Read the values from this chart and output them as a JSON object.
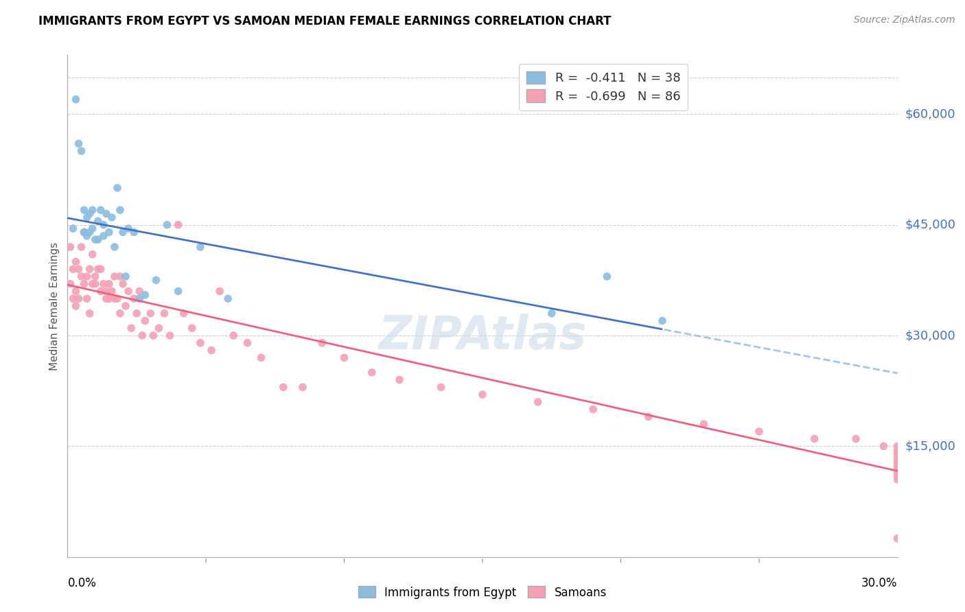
{
  "title": "IMMIGRANTS FROM EGYPT VS SAMOAN MEDIAN FEMALE EARNINGS CORRELATION CHART",
  "source": "Source: ZipAtlas.com",
  "ylabel": "Median Female Earnings",
  "right_yticks": [
    "$60,000",
    "$45,000",
    "$30,000",
    "$15,000"
  ],
  "right_ytick_vals": [
    60000,
    45000,
    30000,
    15000
  ],
  "legend_egypt": "R =  -0.411   N = 38",
  "legend_samoan": "R =  -0.699   N = 86",
  "legend_label1": "Immigrants from Egypt",
  "legend_label2": "Samoans",
  "egypt_color": "#8bbde0",
  "samoan_color": "#f4a0b5",
  "egypt_line_color": "#4472c4",
  "samoan_line_color": "#f06080",
  "egypt_line_dash_color": "#a0c8e8",
  "xmin": 0.0,
  "xmax": 0.3,
  "ymin": 0,
  "ymax": 68000,
  "egypt_scatter_x": [
    0.002,
    0.003,
    0.004,
    0.005,
    0.006,
    0.006,
    0.007,
    0.007,
    0.008,
    0.008,
    0.009,
    0.009,
    0.01,
    0.011,
    0.011,
    0.012,
    0.013,
    0.013,
    0.014,
    0.015,
    0.016,
    0.017,
    0.018,
    0.019,
    0.02,
    0.021,
    0.022,
    0.024,
    0.026,
    0.028,
    0.032,
    0.036,
    0.04,
    0.048,
    0.058,
    0.175,
    0.195,
    0.215
  ],
  "egypt_scatter_y": [
    44500,
    62000,
    56000,
    55000,
    44000,
    47000,
    43500,
    46000,
    46500,
    44000,
    47000,
    44500,
    43000,
    45500,
    43000,
    47000,
    45000,
    43500,
    46500,
    44000,
    46000,
    42000,
    50000,
    47000,
    44000,
    38000,
    44500,
    44000,
    35000,
    35500,
    37500,
    45000,
    36000,
    42000,
    35000,
    33000,
    38000,
    32000
  ],
  "samoan_scatter_x": [
    0.001,
    0.001,
    0.002,
    0.002,
    0.003,
    0.003,
    0.003,
    0.004,
    0.004,
    0.005,
    0.005,
    0.006,
    0.006,
    0.007,
    0.007,
    0.008,
    0.008,
    0.009,
    0.009,
    0.01,
    0.01,
    0.011,
    0.012,
    0.012,
    0.013,
    0.014,
    0.014,
    0.015,
    0.015,
    0.016,
    0.017,
    0.017,
    0.018,
    0.019,
    0.019,
    0.02,
    0.021,
    0.022,
    0.023,
    0.024,
    0.025,
    0.026,
    0.027,
    0.028,
    0.03,
    0.031,
    0.033,
    0.035,
    0.037,
    0.04,
    0.042,
    0.045,
    0.048,
    0.052,
    0.055,
    0.06,
    0.065,
    0.07,
    0.078,
    0.085,
    0.092,
    0.1,
    0.11,
    0.12,
    0.135,
    0.15,
    0.17,
    0.19,
    0.21,
    0.23,
    0.25,
    0.27,
    0.285,
    0.295,
    0.3,
    0.3,
    0.3,
    0.3,
    0.3,
    0.3,
    0.3,
    0.3,
    0.3,
    0.3,
    0.3,
    0.3
  ],
  "samoan_scatter_y": [
    42000,
    37000,
    39000,
    35000,
    40000,
    36000,
    34000,
    39000,
    35000,
    42000,
    38000,
    37000,
    44000,
    38000,
    35000,
    39000,
    33000,
    37000,
    41000,
    37000,
    38000,
    39000,
    39000,
    36000,
    37000,
    36000,
    35000,
    37000,
    35000,
    36000,
    35000,
    38000,
    35000,
    38000,
    33000,
    37000,
    34000,
    36000,
    31000,
    35000,
    33000,
    36000,
    30000,
    32000,
    33000,
    30000,
    31000,
    33000,
    30000,
    45000,
    33000,
    31000,
    29000,
    28000,
    36000,
    30000,
    29000,
    27000,
    23000,
    23000,
    29000,
    27000,
    25000,
    24000,
    23000,
    22000,
    21000,
    20000,
    19000,
    18000,
    17000,
    16000,
    16000,
    15000,
    15000,
    14500,
    14000,
    14000,
    13500,
    13000,
    12500,
    12000,
    11500,
    11000,
    10500,
    2500
  ]
}
